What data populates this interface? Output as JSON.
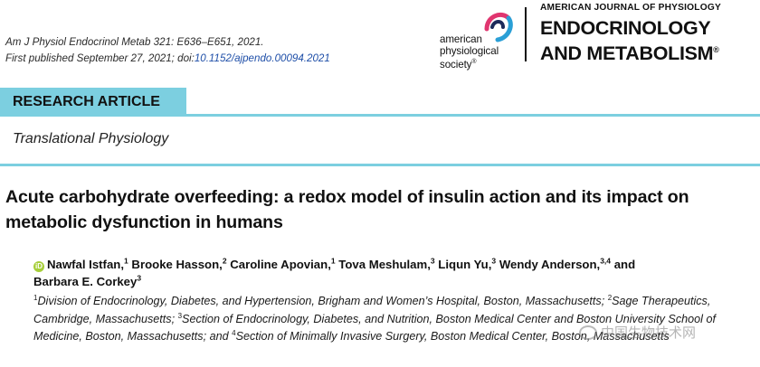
{
  "citation": {
    "line1": "Am J Physiol Endocrinol Metab 321: E636–E651, 2021.",
    "line2_prefix": "First published September 27, 2021; doi:",
    "doi": "10.1152/ajpendo.00094.2021"
  },
  "publisher": {
    "line1": "american",
    "line2": "physiological",
    "line3": "society",
    "trademark": "®"
  },
  "journal": {
    "top": "AMERICAN JOURNAL OF PHYSIOLOGY",
    "name_line1": "ENDOCRINOLOGY",
    "name_line2": "AND METABOLISM",
    "trademark": "®"
  },
  "article_type": "RESEARCH ARTICLE",
  "section": "Translational Physiology",
  "title": "Acute carbohydrate overfeeding: a redox model of insulin action and its impact on metabolic dysfunction in humans",
  "authors": [
    {
      "name": "Nawfal Istfan,",
      "aff": "1"
    },
    {
      "name": "Brooke Hasson,",
      "aff": "2"
    },
    {
      "name": "Caroline Apovian,",
      "aff": "1"
    },
    {
      "name": "Tova Meshulam,",
      "aff": "3"
    },
    {
      "name": "Liqun Yu,",
      "aff": "3"
    },
    {
      "name": "Wendy Anderson,",
      "aff": "3,4"
    },
    {
      "name": "and",
      "aff": ""
    },
    {
      "name": "Barbara E. Corkey",
      "aff": "3"
    }
  ],
  "affiliations": [
    {
      "num": "1",
      "text": "Division of Endocrinology, Diabetes, and Hypertension, Brigham and Women’s Hospital, Boston, Massachusetts; "
    },
    {
      "num": "2",
      "text": "Sage Therapeutics, Cambridge, Massachusetts; "
    },
    {
      "num": "3",
      "text": "Section of Endocrinology, Diabetes, and Nutrition, Boston Medical Center and Boston University School of Medicine, Boston, Massachusetts; and "
    },
    {
      "num": "4",
      "text": "Section of Minimally Invasive Surgery, Boston Medical Center, Boston, Massachusetts"
    }
  ],
  "watermark": "中国生物技术网",
  "colors": {
    "accent_bar": "#7ccfe0",
    "doi_link": "#1f4fa8",
    "orcid": "#a6ce39",
    "logo_pink": "#e0356f",
    "logo_blue": "#2a9fd6",
    "logo_navy": "#1c2a5a"
  }
}
